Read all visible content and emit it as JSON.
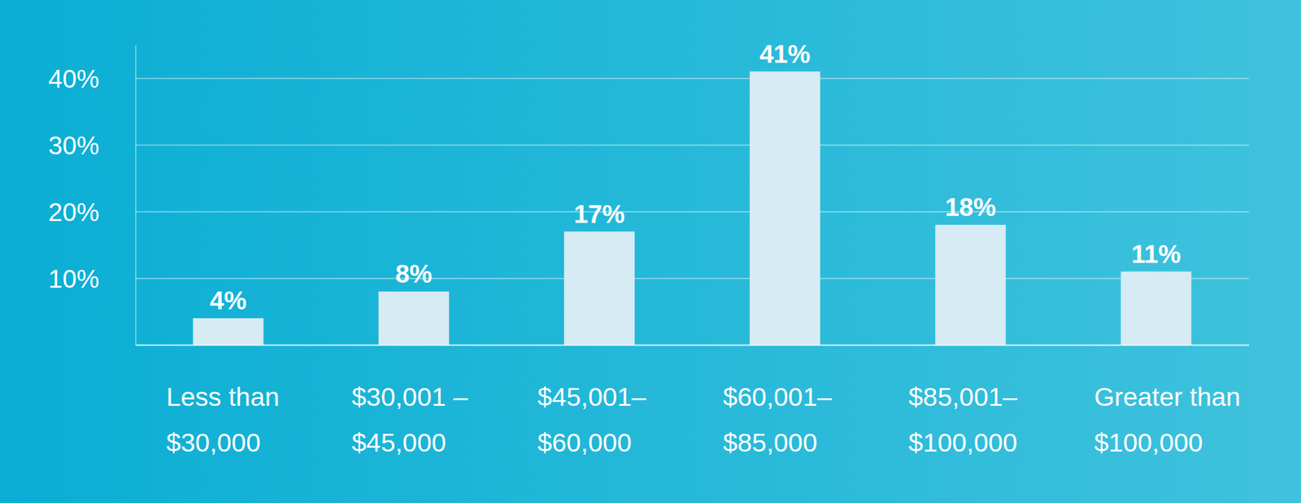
{
  "chart_data": {
    "type": "bar",
    "categories": [
      "Less than $30,000",
      "$30,001 – $45,000",
      "$45,001–$60,000",
      "$60,001–$85,000",
      "$85,001–$100,000",
      "Greater than $100,000"
    ],
    "values": [
      4,
      8,
      17,
      41,
      18,
      11
    ],
    "value_labels": [
      "4%",
      "8%",
      "17%",
      "41%",
      "18%",
      "11%"
    ],
    "color": "#d6ebf3",
    "ylim": [
      0,
      45
    ],
    "yticks": [
      {
        "value": 10,
        "label": "10%"
      },
      {
        "value": 20,
        "label": "20%"
      },
      {
        "value": 30,
        "label": "30%"
      },
      {
        "value": 40,
        "label": "40%"
      }
    ],
    "grid": true,
    "data_labels": true
  }
}
